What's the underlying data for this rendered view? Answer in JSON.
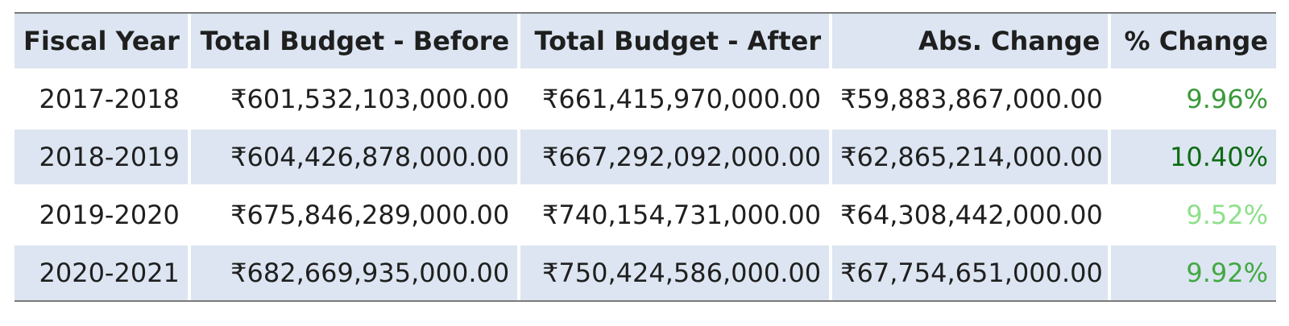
{
  "table": {
    "headers": [
      "Fiscal Year",
      "Total Budget - Before",
      "Total Budget - After",
      "Abs. Change",
      "% Change"
    ],
    "rows": [
      {
        "year": "2017-2018",
        "before": "₹601,532,103,000.00",
        "after": "₹661,415,970,000.00",
        "abs_change": "₹59,883,867,000.00",
        "pct_change": "9.96%",
        "pct_color": "#3a9a3a"
      },
      {
        "year": "2018-2019",
        "before": "₹604,426,878,000.00",
        "after": "₹667,292,092,000.00",
        "abs_change": "₹62,865,214,000.00",
        "pct_change": "10.40%",
        "pct_color": "#0d6b12"
      },
      {
        "year": "2019-2020",
        "before": "₹675,846,289,000.00",
        "after": "₹740,154,731,000.00",
        "abs_change": "₹64,308,442,000.00",
        "pct_change": "9.52%",
        "pct_color": "#8ee08a"
      },
      {
        "year": "2020-2021",
        "before": "₹682,669,935,000.00",
        "after": "₹750,424,586,000.00",
        "abs_change": "₹67,754,651,000.00",
        "pct_change": "9.92%",
        "pct_color": "#44a844"
      }
    ]
  },
  "chart_data": {
    "type": "table",
    "columns": [
      "Fiscal Year",
      "Total Budget - Before",
      "Total Budget - After",
      "Abs. Change",
      "% Change"
    ],
    "rows": [
      [
        "2017-2018",
        601532103000.0,
        661415970000.0,
        59883867000.0,
        9.96
      ],
      [
        "2018-2019",
        604426878000.0,
        667292092000.0,
        62865214000.0,
        10.4
      ],
      [
        "2019-2020",
        675846289000.0,
        740154731000.0,
        64308442000.0,
        9.52
      ],
      [
        "2020-2021",
        682669935000.0,
        750424586000.0,
        67754651000.0,
        9.92
      ]
    ]
  }
}
